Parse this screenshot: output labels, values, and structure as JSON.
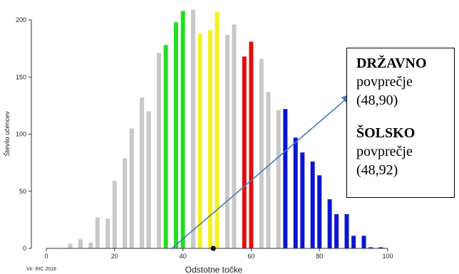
{
  "chart_data": {
    "type": "bar",
    "xlabel": "Odstotne točke",
    "ylabel": "Število učencev",
    "source": "Vir: RIC 2018",
    "xlim": [
      0,
      100
    ],
    "ylim": [
      0,
      200
    ],
    "xticks": [
      0,
      20,
      40,
      60,
      80,
      100
    ],
    "yticks": [
      0,
      50,
      100,
      150,
      200
    ],
    "bars": [
      {
        "x": 7,
        "y": 4,
        "color": "#c8c8c8"
      },
      {
        "x": 10,
        "y": 8,
        "color": "#c8c8c8"
      },
      {
        "x": 13,
        "y": 5,
        "color": "#c8c8c8"
      },
      {
        "x": 15,
        "y": 27,
        "color": "#c8c8c8"
      },
      {
        "x": 18,
        "y": 26,
        "color": "#c8c8c8"
      },
      {
        "x": 20,
        "y": 59,
        "color": "#c8c8c8"
      },
      {
        "x": 23,
        "y": 79,
        "color": "#c8c8c8"
      },
      {
        "x": 25,
        "y": 105,
        "color": "#c8c8c8"
      },
      {
        "x": 28,
        "y": 132,
        "color": "#c8c8c8"
      },
      {
        "x": 30,
        "y": 120,
        "color": "#c8c8c8"
      },
      {
        "x": 33,
        "y": 171,
        "color": "#c8c8c8"
      },
      {
        "x": 35,
        "y": 178,
        "color": "#22dd22"
      },
      {
        "x": 38,
        "y": 198,
        "color": "#22dd22"
      },
      {
        "x": 40,
        "y": 208,
        "color": "#22dd22"
      },
      {
        "x": 43,
        "y": 209,
        "color": "#c8c8c8"
      },
      {
        "x": 45,
        "y": 188,
        "color": "#f5f020"
      },
      {
        "x": 48,
        "y": 191,
        "color": "#f5f020"
      },
      {
        "x": 50,
        "y": 207,
        "color": "#f5f020"
      },
      {
        "x": 53,
        "y": 187,
        "color": "#c8c8c8"
      },
      {
        "x": 55,
        "y": 196,
        "color": "#c8c8c8"
      },
      {
        "x": 58,
        "y": 168,
        "color": "#e01010"
      },
      {
        "x": 60,
        "y": 181,
        "color": "#e01010"
      },
      {
        "x": 63,
        "y": 166,
        "color": "#c8c8c8"
      },
      {
        "x": 65,
        "y": 137,
        "color": "#c8c8c8"
      },
      {
        "x": 68,
        "y": 121,
        "color": "#c8c8c8"
      },
      {
        "x": 70,
        "y": 122,
        "color": "#0a16d0"
      },
      {
        "x": 73,
        "y": 97,
        "color": "#0a16d0"
      },
      {
        "x": 75,
        "y": 84,
        "color": "#0a16d0"
      },
      {
        "x": 78,
        "y": 76,
        "color": "#0a16d0"
      },
      {
        "x": 80,
        "y": 64,
        "color": "#0a16d0"
      },
      {
        "x": 83,
        "y": 43,
        "color": "#0a16d0"
      },
      {
        "x": 85,
        "y": 30,
        "color": "#0a16d0"
      },
      {
        "x": 88,
        "y": 30,
        "color": "#0a16d0"
      },
      {
        "x": 90,
        "y": 11,
        "color": "#0a16d0"
      },
      {
        "x": 93,
        "y": 11,
        "color": "#0a16d0"
      },
      {
        "x": 95,
        "y": 1,
        "color": "#0a16d0"
      },
      {
        "x": 98,
        "y": 1,
        "color": "#0a16d0"
      }
    ],
    "mean_marker": {
      "x": 48.9,
      "y": 0
    },
    "arrow_color": "#4a7ab8"
  },
  "callout": {
    "line1": "DRŽAVNO",
    "line2": "povprečje",
    "line3": "(48,90)",
    "line4": "ŠOLSKO",
    "line5": "povprečje",
    "line6": "(48,92)"
  }
}
